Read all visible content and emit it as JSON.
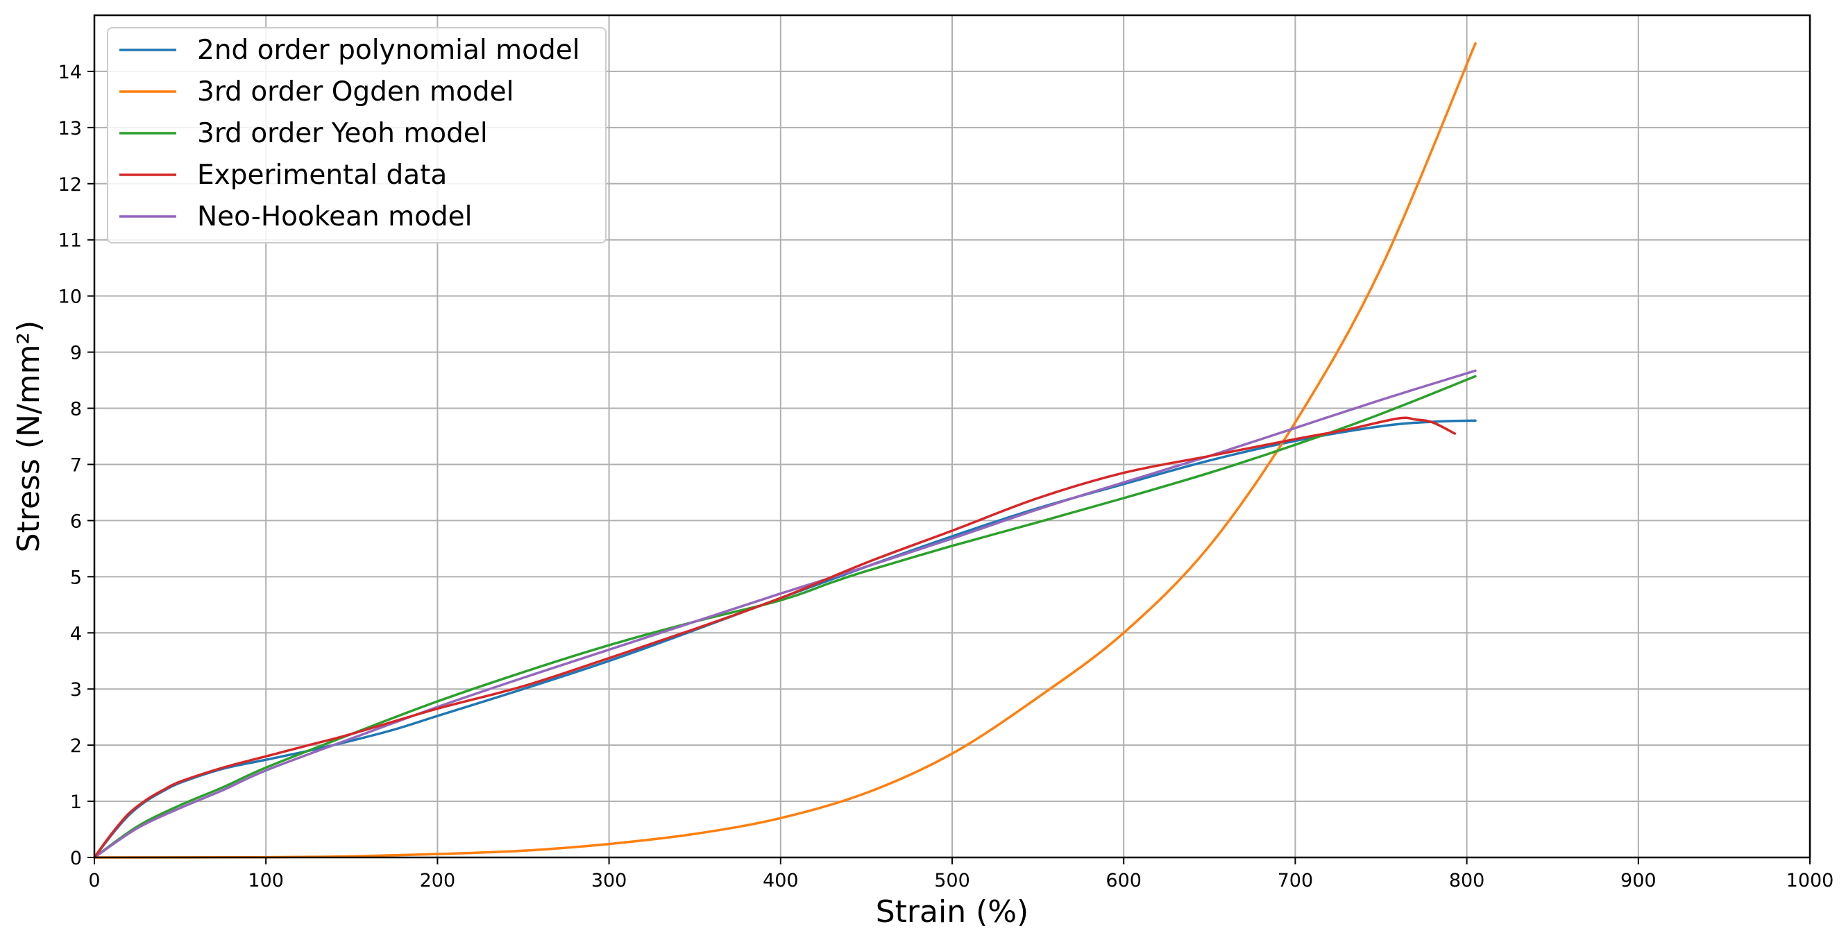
{
  "chart_data": {
    "type": "line",
    "title": "",
    "xlabel": "Strain (%)",
    "ylabel": "Stress (N/mm²)",
    "xlim": [
      0,
      1000
    ],
    "ylim": [
      0,
      15
    ],
    "x_ticks": [
      "0",
      "100",
      "200",
      "300",
      "400",
      "500",
      "600",
      "700",
      "800",
      "900",
      "1000"
    ],
    "y_ticks": [
      "0",
      "1",
      "2",
      "3",
      "4",
      "5",
      "6",
      "7",
      "8",
      "9",
      "10",
      "11",
      "12",
      "13",
      "14"
    ],
    "grid": true,
    "legend_position": "top-left",
    "series": [
      {
        "name": "2nd order polynomial model",
        "color": "#1f77b4",
        "points": [
          [
            0,
            0
          ],
          [
            10,
            0.4
          ],
          [
            20,
            0.75
          ],
          [
            30,
            1.0
          ],
          [
            40,
            1.18
          ],
          [
            50,
            1.33
          ],
          [
            75,
            1.58
          ],
          [
            100,
            1.74
          ],
          [
            125,
            1.9
          ],
          [
            150,
            2.08
          ],
          [
            175,
            2.28
          ],
          [
            200,
            2.52
          ],
          [
            250,
            3.0
          ],
          [
            300,
            3.5
          ],
          [
            350,
            4.05
          ],
          [
            400,
            4.62
          ],
          [
            450,
            5.18
          ],
          [
            500,
            5.72
          ],
          [
            550,
            6.22
          ],
          [
            600,
            6.65
          ],
          [
            650,
            7.07
          ],
          [
            700,
            7.42
          ],
          [
            750,
            7.68
          ],
          [
            780,
            7.76
          ],
          [
            805,
            7.78
          ]
        ]
      },
      {
        "name": "3rd order Ogden model",
        "color": "#ff7f0e",
        "points": [
          [
            0,
            0
          ],
          [
            100,
            0.005
          ],
          [
            150,
            0.02
          ],
          [
            200,
            0.06
          ],
          [
            250,
            0.12
          ],
          [
            300,
            0.24
          ],
          [
            350,
            0.42
          ],
          [
            400,
            0.7
          ],
          [
            450,
            1.15
          ],
          [
            500,
            1.85
          ],
          [
            550,
            2.85
          ],
          [
            600,
            4.0
          ],
          [
            650,
            5.55
          ],
          [
            700,
            7.75
          ],
          [
            750,
            10.5
          ],
          [
            805,
            14.5
          ]
        ]
      },
      {
        "name": "3rd order Yeoh model",
        "color": "#2ca02c",
        "points": [
          [
            0,
            0
          ],
          [
            25,
            0.55
          ],
          [
            50,
            0.93
          ],
          [
            75,
            1.25
          ],
          [
            100,
            1.6
          ],
          [
            150,
            2.2
          ],
          [
            200,
            2.78
          ],
          [
            250,
            3.3
          ],
          [
            300,
            3.78
          ],
          [
            350,
            4.2
          ],
          [
            400,
            4.58
          ],
          [
            430,
            4.9
          ],
          [
            450,
            5.1
          ],
          [
            500,
            5.55
          ],
          [
            550,
            5.97
          ],
          [
            600,
            6.4
          ],
          [
            650,
            6.85
          ],
          [
            700,
            7.35
          ],
          [
            750,
            7.9
          ],
          [
            805,
            8.57
          ]
        ]
      },
      {
        "name": "Experimental data",
        "color": "#d62728",
        "points": [
          [
            0,
            0
          ],
          [
            10,
            0.42
          ],
          [
            20,
            0.78
          ],
          [
            30,
            1.02
          ],
          [
            40,
            1.2
          ],
          [
            50,
            1.35
          ],
          [
            75,
            1.6
          ],
          [
            100,
            1.8
          ],
          [
            125,
            2.0
          ],
          [
            150,
            2.2
          ],
          [
            200,
            2.65
          ],
          [
            250,
            3.05
          ],
          [
            300,
            3.55
          ],
          [
            350,
            4.07
          ],
          [
            400,
            4.62
          ],
          [
            450,
            5.25
          ],
          [
            500,
            5.82
          ],
          [
            550,
            6.4
          ],
          [
            600,
            6.85
          ],
          [
            650,
            7.15
          ],
          [
            700,
            7.45
          ],
          [
            730,
            7.62
          ],
          [
            760,
            7.82
          ],
          [
            770,
            7.8
          ],
          [
            780,
            7.75
          ],
          [
            793,
            7.55
          ]
        ]
      },
      {
        "name": "Neo-Hookean model",
        "color": "#9467bd",
        "points": [
          [
            0,
            0
          ],
          [
            25,
            0.52
          ],
          [
            50,
            0.88
          ],
          [
            75,
            1.2
          ],
          [
            100,
            1.55
          ],
          [
            150,
            2.12
          ],
          [
            200,
            2.68
          ],
          [
            250,
            3.2
          ],
          [
            300,
            3.7
          ],
          [
            350,
            4.2
          ],
          [
            400,
            4.7
          ],
          [
            450,
            5.18
          ],
          [
            500,
            5.68
          ],
          [
            550,
            6.2
          ],
          [
            600,
            6.68
          ],
          [
            650,
            7.15
          ],
          [
            700,
            7.65
          ],
          [
            750,
            8.15
          ],
          [
            805,
            8.67
          ]
        ]
      }
    ]
  }
}
